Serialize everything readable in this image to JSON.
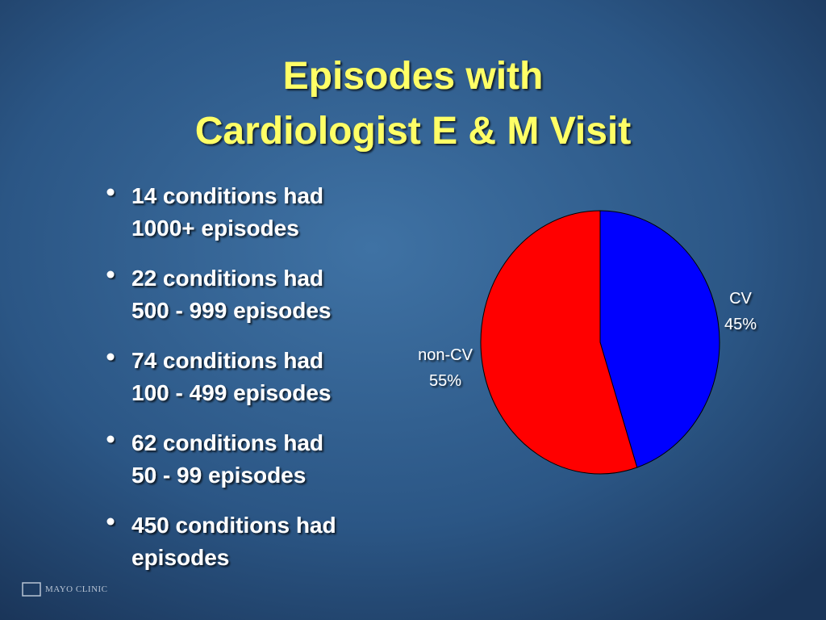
{
  "title": [
    "Episodes with",
    "Cardiologist E & M Visit"
  ],
  "bullets": [
    [
      "14 conditions had",
      "1000+ episodes"
    ],
    [
      "22 conditions had",
      "500 - 999 episodes"
    ],
    [
      "74 conditions had",
      "100 - 499 episodes"
    ],
    [
      "62 conditions had",
      "50 - 99 episodes"
    ],
    [
      "450 conditions had",
      "episodes"
    ]
  ],
  "footer": "MAYO CLINIC",
  "chart_data": {
    "type": "pie",
    "categories": [
      "CV",
      "non-CV"
    ],
    "values": [
      45,
      55
    ],
    "value_labels": [
      "45%",
      "55%"
    ],
    "colors": [
      "#0000ff",
      "#ff0000"
    ]
  }
}
